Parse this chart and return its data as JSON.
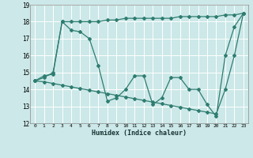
{
  "xlabel": "Humidex (Indice chaleur)",
  "bg_color": "#cce8e8",
  "grid_color": "#ffffff",
  "line_color": "#2e7d70",
  "xlim": [
    -0.5,
    23.5
  ],
  "ylim": [
    12,
    19
  ],
  "yticks": [
    12,
    13,
    14,
    15,
    16,
    17,
    18,
    19
  ],
  "xticks": [
    0,
    1,
    2,
    3,
    4,
    5,
    6,
    7,
    8,
    9,
    10,
    11,
    12,
    13,
    14,
    15,
    16,
    17,
    18,
    19,
    20,
    21,
    22,
    23
  ],
  "series": [
    [
      14.5,
      14.8,
      14.9,
      18.0,
      17.5,
      17.4,
      17.0,
      15.4,
      13.3,
      13.5,
      14.0,
      14.8,
      14.8,
      13.1,
      13.5,
      14.7,
      14.7,
      14.0,
      14.0,
      13.1,
      12.4,
      16.0,
      17.7,
      18.5
    ],
    [
      14.5,
      14.7,
      15.0,
      18.0,
      18.0,
      18.0,
      18.0,
      18.0,
      18.1,
      18.1,
      18.2,
      18.2,
      18.2,
      18.2,
      18.2,
      18.2,
      18.3,
      18.3,
      18.3,
      18.3,
      18.3,
      18.4,
      18.4,
      18.5
    ],
    [
      14.5,
      14.45,
      14.35,
      14.25,
      14.15,
      14.05,
      13.95,
      13.85,
      13.75,
      13.65,
      13.55,
      13.45,
      13.35,
      13.25,
      13.15,
      13.05,
      12.95,
      12.85,
      12.75,
      12.65,
      12.55,
      14.0,
      16.0,
      18.5
    ]
  ]
}
